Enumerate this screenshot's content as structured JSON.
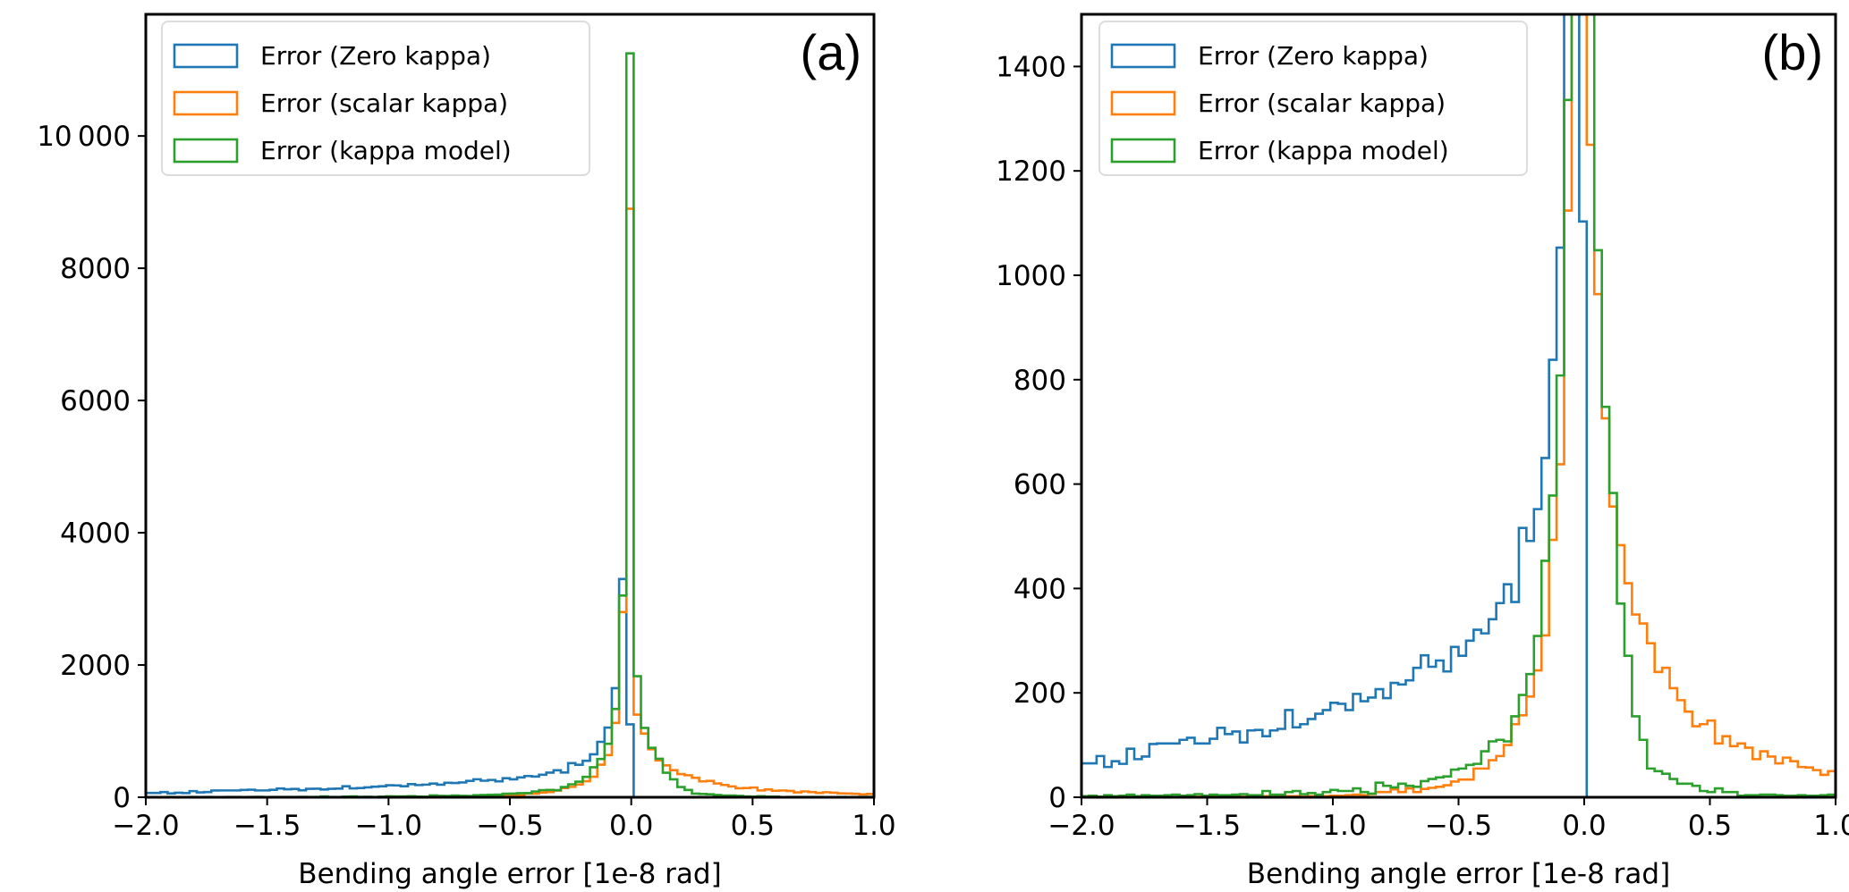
{
  "chart_data": [
    {
      "type": "histogram-step",
      "panel_label": "(a)",
      "xlabel": "Bending angle error [1e-8 rad]",
      "ylabel": "",
      "xlim": [
        -2.0,
        1.0
      ],
      "ylim": [
        0,
        11840
      ],
      "xticks": [
        -2.0,
        -1.5,
        -1.0,
        -0.5,
        0.0,
        0.5,
        1.0
      ],
      "xtick_labels": [
        "−2.0",
        "−1.5",
        "−1.0",
        "−0.5",
        "0.0",
        "0.5",
        "1.0"
      ],
      "yticks": [
        0,
        2000,
        4000,
        6000,
        8000,
        10000
      ],
      "ytick_labels": [
        "0",
        "2000",
        "4000",
        "6000",
        "8000",
        "10 000"
      ],
      "legend_position": "top-left",
      "bins": {
        "start": -2.0,
        "width": 0.03,
        "count": 100
      }
    },
    {
      "type": "histogram-step",
      "panel_label": "(b)",
      "xlabel": "Bending angle error [1e-8 rad]",
      "ylabel": "",
      "xlim": [
        -2.0,
        1.0
      ],
      "ylim": [
        0,
        1500
      ],
      "xticks": [
        -2.0,
        -1.5,
        -1.0,
        -0.5,
        0.0,
        0.5,
        1.0
      ],
      "xtick_labels": [
        "−2.0",
        "−1.5",
        "−1.0",
        "−0.5",
        "0.0",
        "0.5",
        "1.0"
      ],
      "yticks": [
        0,
        200,
        400,
        600,
        800,
        1000,
        1200,
        1400
      ],
      "ytick_labels": [
        "0",
        "200",
        "400",
        "600",
        "800",
        "1000",
        "1200",
        "1400"
      ],
      "legend_position": "top-left",
      "bins": {
        "start": -2.0,
        "width": 0.03,
        "count": 100
      }
    }
  ],
  "series": [
    {
      "name": "Error (Zero kappa)",
      "color": "#1f77b4",
      "counts": [
        65,
        65,
        79,
        58,
        69,
        64,
        93,
        73,
        78,
        102,
        103,
        103,
        103,
        110,
        114,
        103,
        103,
        112,
        133,
        121,
        126,
        105,
        128,
        129,
        117,
        128,
        131,
        167,
        134,
        140,
        150,
        160,
        167,
        181,
        179,
        167,
        198,
        184,
        191,
        207,
        190,
        219,
        216,
        224,
        248,
        272,
        250,
        262,
        241,
        288,
        271,
        300,
        321,
        314,
        341,
        372,
        408,
        374,
        516,
        491,
        552,
        650,
        838,
        1053,
        1650,
        3300,
        1103,
        0,
        0,
        0,
        0,
        0,
        0,
        0,
        0,
        0,
        0,
        0,
        0,
        0,
        0,
        0,
        0,
        0,
        0,
        0,
        0,
        0,
        0,
        0,
        0,
        0,
        0,
        0,
        0,
        0,
        0,
        0,
        0,
        0
      ]
    },
    {
      "name": "Error (scalar kappa)",
      "color": "#ff7f0e",
      "counts": [
        0,
        0,
        1,
        0,
        0,
        1,
        0,
        0,
        1,
        0,
        1,
        0,
        0,
        1,
        0,
        1,
        0,
        1,
        1,
        0,
        1,
        1,
        0,
        1,
        2,
        1,
        1,
        2,
        2,
        1,
        2,
        3,
        2,
        3,
        3,
        4,
        5,
        4,
        6,
        10,
        10,
        15,
        10,
        17,
        10,
        16,
        18,
        20,
        23,
        30,
        34,
        34,
        55,
        55,
        71,
        79,
        100,
        140,
        157,
        193,
        243,
        310,
        493,
        638,
        1124,
        2800,
        8900,
        1250,
        964,
        726,
        557,
        483,
        410,
        350,
        333,
        295,
        240,
        248,
        209,
        186,
        164,
        136,
        140,
        147,
        103,
        117,
        98,
        103,
        95,
        73,
        88,
        78,
        65,
        76,
        69,
        58,
        57,
        52,
        43,
        50
      ]
    },
    {
      "name": "Error (kappa model)",
      "color": "#2ca02c",
      "counts": [
        2,
        3,
        1,
        4,
        2,
        3,
        5,
        2,
        4,
        3,
        3,
        4,
        5,
        3,
        4,
        6,
        3,
        5,
        4,
        4,
        5,
        6,
        4,
        4,
        12,
        5,
        5,
        10,
        12,
        6,
        8,
        5,
        10,
        14,
        12,
        12,
        17,
        10,
        7,
        28,
        22,
        19,
        26,
        22,
        20,
        31,
        35,
        38,
        40,
        53,
        55,
        62,
        64,
        88,
        107,
        110,
        107,
        155,
        196,
        236,
        309,
        453,
        578,
        808,
        1336,
        3050,
        11250,
        1830,
        1048,
        748,
        583,
        371,
        271,
        155,
        110,
        55,
        50,
        45,
        35,
        26,
        26,
        22,
        12,
        10,
        17,
        10,
        10,
        3,
        4,
        4,
        5,
        5,
        4,
        3,
        3,
        4,
        3,
        3,
        4,
        5
      ]
    }
  ]
}
